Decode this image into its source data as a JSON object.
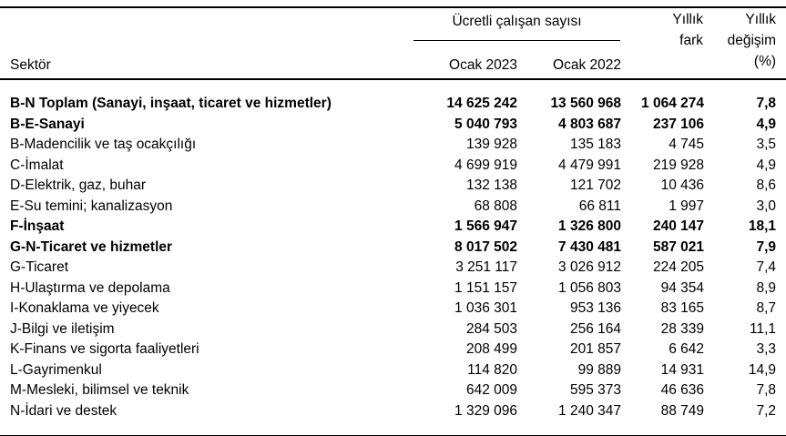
{
  "colors": {
    "background": "#ffffff",
    "text": "#000000",
    "rule": "#000000"
  },
  "chart_data": {
    "type": "table",
    "header": {
      "sector_label": "Sektör",
      "group_label": "Ücretli çalışan sayısı",
      "sub_columns": [
        "Ocak 2023",
        "Ocak 2022"
      ],
      "diff_label": "Yıllık\nfark",
      "pct_label": "Yıllık\ndeğişim\n(%)"
    },
    "rows": [
      {
        "sector": "B-N Toplam (Sanayi, inşaat, ticaret ve hizmetler)",
        "jan2023": "14 625 242",
        "jan2022": "13 560 968",
        "diff": "1 064 274",
        "pct": "7,8",
        "bold": true
      },
      {
        "sector": "B-E-Sanayi",
        "jan2023": "5 040 793",
        "jan2022": "4 803 687",
        "diff": "237 106",
        "pct": "4,9",
        "bold": true
      },
      {
        "sector": "B-Madencilik ve taş ocakçılığı",
        "jan2023": "139 928",
        "jan2022": "135 183",
        "diff": "4 745",
        "pct": "3,5",
        "bold": false
      },
      {
        "sector": "C-İmalat",
        "jan2023": "4 699 919",
        "jan2022": "4 479 991",
        "diff": "219 928",
        "pct": "4,9",
        "bold": false
      },
      {
        "sector": "D-Elektrik, gaz, buhar",
        "jan2023": "132 138",
        "jan2022": "121 702",
        "diff": "10 436",
        "pct": "8,6",
        "bold": false
      },
      {
        "sector": "E-Su temini; kanalizasyon",
        "jan2023": "68 808",
        "jan2022": "66 811",
        "diff": "1 997",
        "pct": "3,0",
        "bold": false
      },
      {
        "sector": "F-İnşaat",
        "jan2023": "1 566 947",
        "jan2022": "1 326 800",
        "diff": "240 147",
        "pct": "18,1",
        "bold": true
      },
      {
        "sector": "G-N-Ticaret ve hizmetler",
        "jan2023": "8 017 502",
        "jan2022": "7 430 481",
        "diff": "587 021",
        "pct": "7,9",
        "bold": true
      },
      {
        "sector": "G-Ticaret",
        "jan2023": "3 251 117",
        "jan2022": "3 026 912",
        "diff": "224 205",
        "pct": "7,4",
        "bold": false
      },
      {
        "sector": "H-Ulaştırma ve depolama",
        "jan2023": "1 151 157",
        "jan2022": "1 056 803",
        "diff": "94 354",
        "pct": "8,9",
        "bold": false
      },
      {
        "sector": "I-Konaklama ve yiyecek",
        "jan2023": "1 036 301",
        "jan2022": "953 136",
        "diff": "83 165",
        "pct": "8,7",
        "bold": false
      },
      {
        "sector": "J-Bilgi ve iletişim",
        "jan2023": "284 503",
        "jan2022": "256 164",
        "diff": "28 339",
        "pct": "11,1",
        "bold": false
      },
      {
        "sector": "K-Finans ve sigorta faaliyetleri",
        "jan2023": "208 499",
        "jan2022": "201 857",
        "diff": "6 642",
        "pct": "3,3",
        "bold": false
      },
      {
        "sector": "L-Gayrimenkul",
        "jan2023": "114 820",
        "jan2022": "99 889",
        "diff": "14 931",
        "pct": "14,9",
        "bold": false
      },
      {
        "sector": "M-Mesleki, bilimsel ve teknik",
        "jan2023": "642 009",
        "jan2022": "595 373",
        "diff": "46 636",
        "pct": "7,8",
        "bold": false
      },
      {
        "sector": "N-İdari ve destek",
        "jan2023": "1 329 096",
        "jan2022": "1 240 347",
        "diff": "88 749",
        "pct": "7,2",
        "bold": false
      }
    ]
  }
}
